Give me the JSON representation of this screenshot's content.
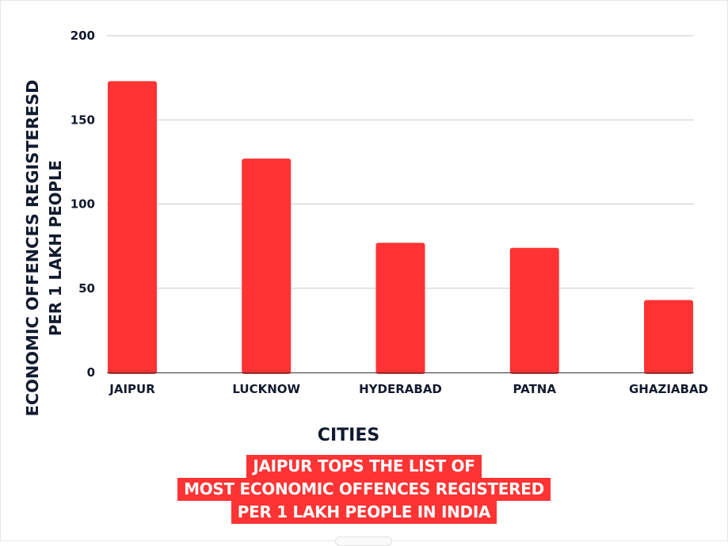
{
  "chart_data": {
    "type": "bar",
    "categories": [
      "JAIPUR",
      "LUCKNOW",
      "HYDERABAD",
      "PATNA",
      "GHAZIABAD"
    ],
    "values": [
      173,
      127,
      77,
      74,
      43
    ],
    "xlabel": "CITIES",
    "ylabel_lines": [
      "ECONOMIC OFFENCES REGISTERESD",
      "PER 1 LAKH PEOPLE"
    ],
    "ylim": [
      0,
      200
    ],
    "yticks": [
      "0",
      "50",
      "100",
      "150",
      "200"
    ],
    "grid": true,
    "bar_color": "#ff3333"
  },
  "caption": {
    "lines": [
      "JAIPUR TOPS THE LIST OF",
      "MOST ECONOMIC OFFENCES REGISTERED",
      "PER 1 LAKH PEOPLE IN INDIA"
    ],
    "background": "#ff3333",
    "color": "#ffffff"
  }
}
